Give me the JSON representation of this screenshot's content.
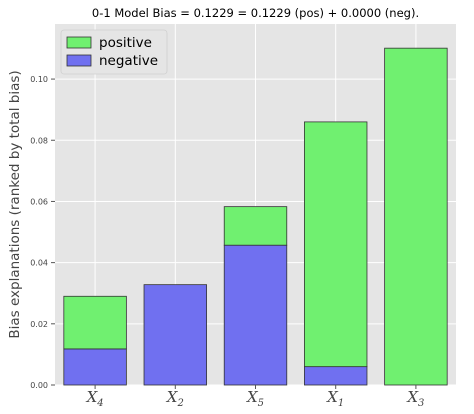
{
  "chart_data": {
    "type": "bar",
    "stacked": true,
    "title": "0-1 Model Bias = 0.1229 = 0.1229 (pos) + 0.0000 (neg).",
    "xlabel": "",
    "ylabel": "Bias explanations (ranked by total bias)",
    "categories": [
      {
        "base": "X",
        "sub": "4"
      },
      {
        "base": "X",
        "sub": "2"
      },
      {
        "base": "X",
        "sub": "5"
      },
      {
        "base": "X",
        "sub": "1"
      },
      {
        "base": "X",
        "sub": "3"
      }
    ],
    "series": [
      {
        "name": "negative",
        "color": "#7070f0",
        "values": [
          0.0118,
          0.0328,
          0.0457,
          0.006,
          0.0
        ]
      },
      {
        "name": "positive",
        "color": "#70f070",
        "values": [
          0.0172,
          0.0,
          0.0126,
          0.08,
          0.1101
        ]
      }
    ],
    "legend_order": [
      "positive",
      "negative"
    ],
    "ylim": [
      0,
      0.118
    ],
    "yticks": [
      "0.00",
      "0.02",
      "0.04",
      "0.06",
      "0.08",
      "0.10"
    ],
    "ytick_values": [
      0.0,
      0.02,
      0.04,
      0.06,
      0.08,
      0.1
    ],
    "grid": true,
    "legend_position": "top-left",
    "style": {
      "plot_background": "#e5e5e5",
      "grid_color": "#ffffff",
      "bar_edge": "#333333"
    }
  }
}
